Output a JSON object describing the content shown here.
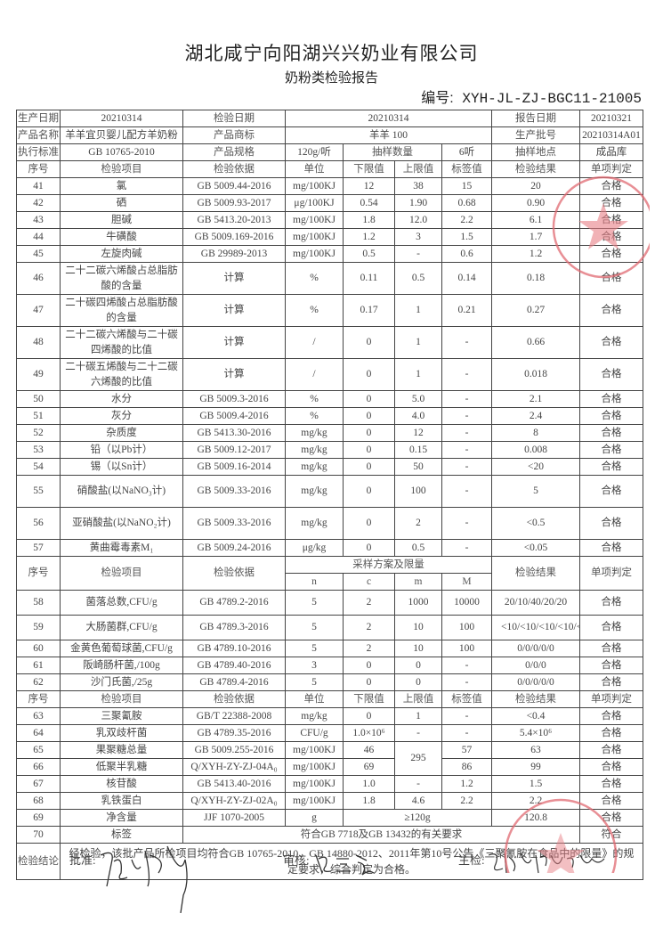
{
  "header": {
    "company": "湖北咸宁向阳湖兴兴奶业有限公司",
    "report_title": "奶粉类检验报告",
    "doc_no_label": "编号:",
    "doc_no": "XYH-JL-ZJ-BGC11-21005"
  },
  "info": {
    "production_date_label": "生产日期",
    "production_date": "20210314",
    "inspection_date_label": "检验日期",
    "inspection_date": "20210314",
    "report_date_label": "报告日期",
    "report_date": "20210321",
    "product_name_label": "产品名称",
    "product_name": "羊羊宜贝婴儿配方羊奶粉",
    "trademark_label": "产品商标",
    "trademark": "羊羊 100",
    "batch_label": "生产批号",
    "batch": "20210314A01",
    "standard_label": "执行标准",
    "standard": "GB 10765-2010",
    "spec_label": "产品规格",
    "spec": "120g/听",
    "sample_qty_label": "抽样数量",
    "sample_qty": "6听",
    "sample_place_label": "抽样地点",
    "sample_place": "成品库"
  },
  "section1": {
    "headers": [
      "序号",
      "检验项目",
      "检验依据",
      "单位",
      "下限值",
      "上限值",
      "标签值",
      "检验结果",
      "单项判定"
    ],
    "rows": [
      [
        "41",
        "氯",
        "GB 5009.44-2016",
        "mg/100KJ",
        "12",
        "38",
        "15",
        "20",
        "合格"
      ],
      [
        "42",
        "硒",
        "GB 5009.93-2017",
        "μg/100KJ",
        "0.54",
        "1.90",
        "0.68",
        "0.90",
        "合格"
      ],
      [
        "43",
        "胆碱",
        "GB 5413.20-2013",
        "mg/100KJ",
        "1.8",
        "12.0",
        "2.2",
        "6.1",
        "合格"
      ],
      [
        "44",
        "牛磺酸",
        "GB 5009.169-2016",
        "mg/100KJ",
        "1.2",
        "3",
        "1.5",
        "1.7",
        "合格"
      ],
      [
        "45",
        "左旋肉碱",
        "GB 29989-2013",
        "mg/100KJ",
        "0.5",
        "-",
        "0.6",
        "1.2",
        "合格"
      ],
      [
        "46",
        "二十二碳六烯酸占总脂肪酸的含量",
        "计算",
        "%",
        "0.11",
        "0.5",
        "0.14",
        "0.18",
        "合格"
      ],
      [
        "47",
        "二十碳四烯酸占总脂肪酸的含量",
        "计算",
        "%",
        "0.17",
        "1",
        "0.21",
        "0.27",
        "合格"
      ],
      [
        "48",
        "二十二碳六烯酸与二十碳四烯酸的比值",
        "计算",
        "/",
        "0",
        "1",
        "-",
        "0.66",
        "合格"
      ],
      [
        "49",
        "二十碳五烯酸与二十二碳六烯酸的比值",
        "计算",
        "/",
        "0",
        "1",
        "-",
        "0.018",
        "合格"
      ],
      [
        "50",
        "水分",
        "GB 5009.3-2016",
        "%",
        "0",
        "5.0",
        "-",
        "2.1",
        "合格"
      ],
      [
        "51",
        "灰分",
        "GB 5009.4-2016",
        "%",
        "0",
        "4.0",
        "-",
        "2.4",
        "合格"
      ],
      [
        "52",
        "杂质度",
        "GB 5413.30-2016",
        "mg/kg",
        "0",
        "12",
        "-",
        "8",
        "合格"
      ],
      [
        "53",
        "铅（以Pb计）",
        "GB 5009.12-2017",
        "mg/kg",
        "0",
        "0.15",
        "-",
        "0.008",
        "合格"
      ],
      [
        "54",
        "锡（以Sn计）",
        "GB 5009.16-2014",
        "mg/kg",
        "0",
        "50",
        "-",
        "<20",
        "合格"
      ],
      [
        "55",
        "硝酸盐(以NaNO₃计)",
        "GB 5009.33-2016",
        "mg/kg",
        "0",
        "100",
        "-",
        "5",
        "合格"
      ],
      [
        "56",
        "亚硝酸盐(以NaNO₂计)",
        "GB 5009.33-2016",
        "mg/kg",
        "0",
        "2",
        "-",
        "<0.5",
        "合格"
      ],
      [
        "57",
        "黄曲霉毒素M₁",
        "GB 5009.24-2016",
        "μg/kg",
        "0",
        "0.5",
        "-",
        "<0.05",
        "合格"
      ]
    ]
  },
  "section2": {
    "headers": [
      "序号",
      "检验项目",
      "检验依据",
      "采样方案及限量",
      "检验结果",
      "单项判定"
    ],
    "sub_headers": [
      "n",
      "c",
      "m",
      "M"
    ],
    "rows": [
      [
        "58",
        "菌落总数,CFU/g",
        "GB 4789.2-2016",
        "5",
        "2",
        "1000",
        "10000",
        "20/10/40/20/20",
        "合格"
      ],
      [
        "59",
        "大肠菌群,CFU/g",
        "GB 4789.3-2016",
        "5",
        "2",
        "10",
        "100",
        "<10/<10/<10/<10/<10",
        "合格"
      ],
      [
        "60",
        "金黄色葡萄球菌,CFU/g",
        "GB 4789.10-2016",
        "5",
        "2",
        "10",
        "100",
        "0/0/0/0/0",
        "合格"
      ],
      [
        "61",
        "阪崎肠杆菌,/100g",
        "GB 4789.40-2016",
        "3",
        "0",
        "0",
        "-",
        "0/0/0",
        "合格"
      ],
      [
        "62",
        "沙门氏菌,/25g",
        "GB 4789.4-2016",
        "5",
        "0",
        "0",
        "-",
        "0/0/0/0/0",
        "合格"
      ]
    ]
  },
  "section3": {
    "headers": [
      "序号",
      "检验项目",
      "检验依据",
      "单位",
      "下限值",
      "上限值",
      "标签值",
      "检验结果",
      "单项判定"
    ],
    "rows": [
      [
        "63",
        "三聚氰胺",
        "GB/T 22388-2008",
        "mg/kg",
        "0",
        "1",
        "-",
        "<0.4",
        "合格"
      ],
      [
        "64",
        "乳双歧杆菌",
        "GB 4789.35-2016",
        "CFU/g",
        "1.0×10⁶",
        "-",
        "-",
        "5.4×10⁶",
        "合格"
      ],
      [
        "65",
        "果聚糖总量",
        "GB 5009.255-2016",
        "mg/100KJ",
        "46",
        "295",
        "57",
        "63",
        "合格"
      ],
      [
        "66",
        "低聚半乳糖",
        "Q/XYH-ZY-ZJ-04A₀",
        "mg/100KJ",
        "69",
        "86",
        "99",
        "合格"
      ],
      [
        "67",
        "核苷酸",
        "GB 5413.40-2016",
        "mg/100KJ",
        "1.0",
        "-",
        "1.2",
        "1.5",
        "合格"
      ],
      [
        "68",
        "乳铁蛋白",
        "Q/XYH-ZY-ZJ-02A₀",
        "mg/100KJ",
        "1.8",
        "4.6",
        "2.2",
        "2.2",
        "合格"
      ],
      [
        "69",
        "净含量",
        "JJF 1070-2005",
        "g",
        "≥120g",
        "120.8",
        "合格"
      ],
      [
        "70",
        "标签",
        "符合GB 7718及GB 13432的有关要求",
        "符合"
      ]
    ],
    "conclusion_label": "检验结论",
    "conclusion": "经检验，该批产品所检项目均符合GB 10765-2010、GB 14880-2012、2011年第10号公告《三聚氰胺在食品中的限量》的规定要求，综合判定为合格。"
  },
  "signatures": {
    "approve_label": "批准:",
    "review_label": "审核:",
    "inspector_label": "主检:"
  },
  "colors": {
    "stamp": "#e0606a",
    "ink": "#333333"
  }
}
